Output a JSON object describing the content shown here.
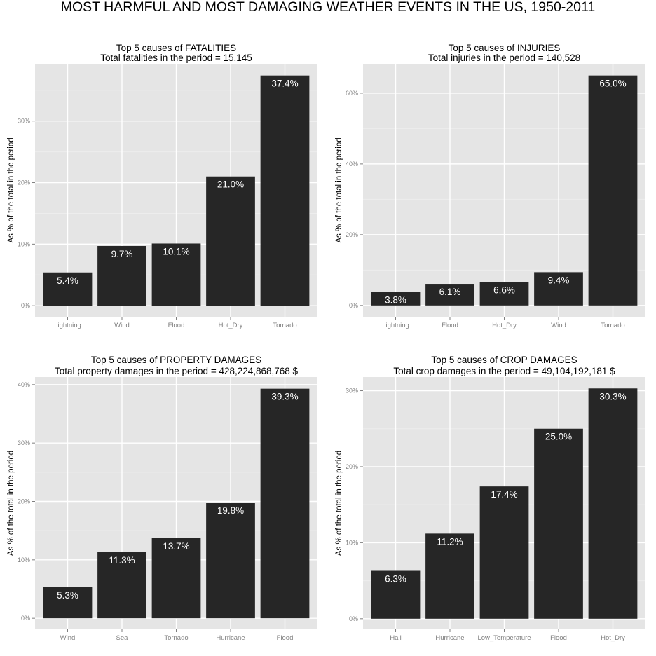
{
  "title": "MOST HARMFUL AND MOST DAMAGING WEATHER EVENTS IN THE US, 1950-2011",
  "colors": {
    "panel_bg": "#e5e5e5",
    "bar": "#262626",
    "bar_label": "#ffffff",
    "grid_major": "#ffffff",
    "grid_minor": "#ededed",
    "tick_text": "#7f7f7f"
  },
  "chart_data": [
    {
      "type": "bar",
      "title": "Top 5 causes of FATALITIES",
      "subtitle": "Total fatalities in the period =  15,145",
      "ylabel": "As % of the total in the period",
      "xlabel": "",
      "categories": [
        "Lightning",
        "Wind",
        "Flood",
        "Hot_Dry",
        "Tornado"
      ],
      "values": [
        5.4,
        9.7,
        10.1,
        21.0,
        37.4
      ],
      "value_labels": [
        "5.4%",
        "9.7%",
        "10.1%",
        "21.0%",
        "37.4%"
      ],
      "yticks": [
        0,
        10,
        20,
        30
      ],
      "ytick_labels": [
        "0%",
        "10%",
        "20%",
        "30%"
      ],
      "ylim": [
        -1.8,
        39.3
      ],
      "grid": true
    },
    {
      "type": "bar",
      "title": "Top 5 causes of INJURIES",
      "subtitle": "Total injuries in the period =  140,528",
      "ylabel": "As % of the total in the period",
      "xlabel": "",
      "categories": [
        "Lightning",
        "Flood",
        "Hot_Dry",
        "Wind",
        "Tornado"
      ],
      "values": [
        3.8,
        6.1,
        6.6,
        9.4,
        65.0
      ],
      "value_labels": [
        "3.8%",
        "6.1%",
        "6.6%",
        "9.4%",
        "65.0%"
      ],
      "yticks": [
        0,
        20,
        40,
        60
      ],
      "ytick_labels": [
        "0%",
        "20%",
        "40%",
        "60%"
      ],
      "ylim": [
        -3.2,
        68.3
      ],
      "grid": true
    },
    {
      "type": "bar",
      "title": "Top 5 causes of PROPERTY DAMAGES",
      "subtitle": "Total property damages in the period =  428,224,868,768 $",
      "ylabel": "As % of the total in the period",
      "xlabel": "",
      "categories": [
        "Wind",
        "Sea",
        "Tornado",
        "Hurricane",
        "Flood"
      ],
      "values": [
        5.3,
        11.3,
        13.7,
        19.8,
        39.3
      ],
      "value_labels": [
        "5.3%",
        "11.3%",
        "13.7%",
        "19.8%",
        "39.3%"
      ],
      "yticks": [
        0,
        10,
        20,
        30,
        40
      ],
      "ytick_labels": [
        "0%",
        "10%",
        "20%",
        "30%",
        "40%"
      ],
      "ylim": [
        -1.9,
        41.3
      ],
      "grid": true
    },
    {
      "type": "bar",
      "title": "Top 5 causes of CROP DAMAGES",
      "subtitle": "Total crop damages in the period =  49,104,192,181 $",
      "ylabel": "As % of the total in the period",
      "xlabel": "",
      "categories": [
        "Hail",
        "Hurricane",
        "Low_Temperature",
        "Flood",
        "Hot_Dry"
      ],
      "values": [
        6.3,
        11.2,
        17.4,
        25.0,
        30.3
      ],
      "value_labels": [
        "6.3%",
        "11.2%",
        "17.4%",
        "25.0%",
        "30.3%"
      ],
      "yticks": [
        0,
        10,
        20,
        30
      ],
      "ytick_labels": [
        "0%",
        "10%",
        "20%",
        "30%"
      ],
      "ylim": [
        -1.4,
        31.8
      ],
      "grid": true
    }
  ]
}
